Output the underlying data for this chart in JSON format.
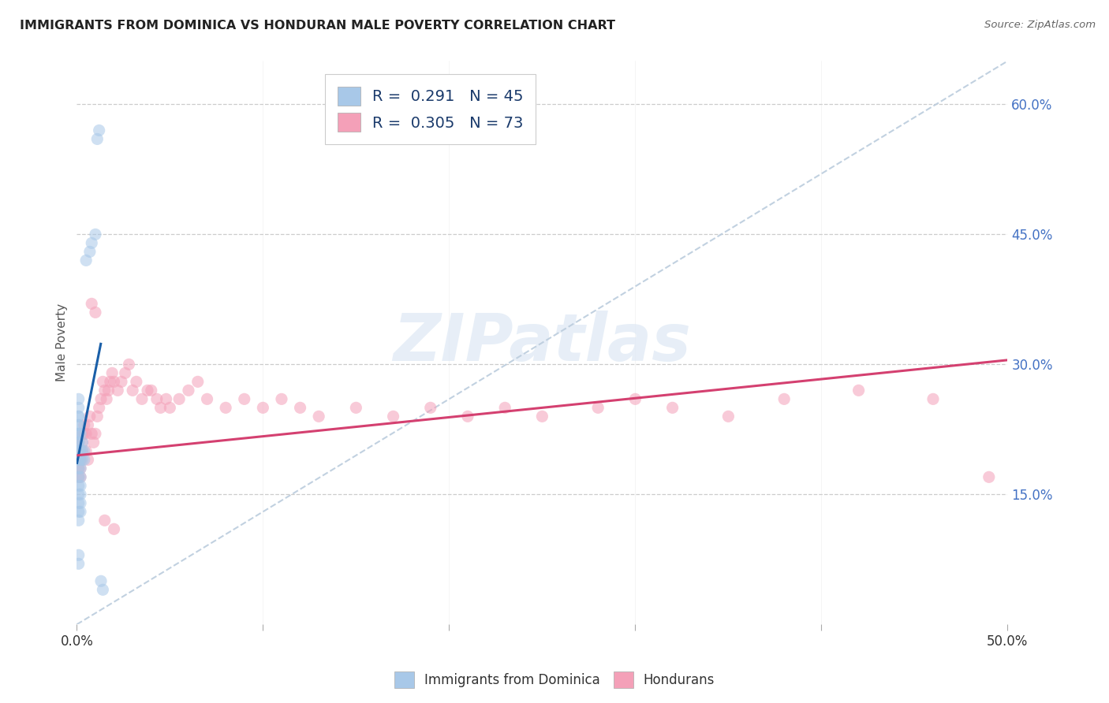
{
  "title": "IMMIGRANTS FROM DOMINICA VS HONDURAN MALE POVERTY CORRELATION CHART",
  "source": "Source: ZipAtlas.com",
  "ylabel": "Male Poverty",
  "ytick_values": [
    0.15,
    0.3,
    0.45,
    0.6
  ],
  "xlim": [
    0.0,
    0.5
  ],
  "ylim": [
    0.0,
    0.65
  ],
  "blue_color": "#a8c8e8",
  "pink_color": "#f4a0b8",
  "blue_line_color": "#1a5fa8",
  "pink_line_color": "#d44070",
  "diag_color": "#bbccdd",
  "dot_size": 120,
  "dot_alpha": 0.55,
  "series1_name": "Immigrants from Dominica",
  "series2_name": "Hondurans",
  "blue_trend_x0": 0.0,
  "blue_trend_x1": 0.013,
  "blue_trend_y0": 0.185,
  "blue_trend_y1": 0.325,
  "pink_trend_x0": 0.0,
  "pink_trend_x1": 0.5,
  "pink_trend_y0": 0.195,
  "pink_trend_y1": 0.305,
  "blue_x": [
    0.001,
    0.001,
    0.001,
    0.001,
    0.001,
    0.001,
    0.001,
    0.001,
    0.001,
    0.001,
    0.001,
    0.001,
    0.001,
    0.001,
    0.001,
    0.001,
    0.001,
    0.001,
    0.001,
    0.001,
    0.001,
    0.002,
    0.002,
    0.002,
    0.002,
    0.002,
    0.002,
    0.002,
    0.002,
    0.002,
    0.003,
    0.003,
    0.003,
    0.004,
    0.004,
    0.005,
    0.007,
    0.008,
    0.01,
    0.011,
    0.012,
    0.013,
    0.014,
    0.001,
    0.001
  ],
  "blue_y": [
    0.19,
    0.2,
    0.21,
    0.2,
    0.19,
    0.18,
    0.17,
    0.16,
    0.15,
    0.14,
    0.13,
    0.12,
    0.21,
    0.22,
    0.23,
    0.24,
    0.25,
    0.24,
    0.23,
    0.22,
    0.26,
    0.2,
    0.19,
    0.18,
    0.17,
    0.16,
    0.15,
    0.14,
    0.13,
    0.22,
    0.19,
    0.2,
    0.21,
    0.2,
    0.19,
    0.42,
    0.43,
    0.44,
    0.45,
    0.56,
    0.57,
    0.05,
    0.04,
    0.07,
    0.08
  ],
  "pink_x": [
    0.002,
    0.003,
    0.004,
    0.005,
    0.006,
    0.007,
    0.008,
    0.009,
    0.01,
    0.011,
    0.012,
    0.013,
    0.014,
    0.015,
    0.016,
    0.017,
    0.018,
    0.019,
    0.02,
    0.022,
    0.024,
    0.026,
    0.028,
    0.03,
    0.032,
    0.035,
    0.038,
    0.04,
    0.043,
    0.045,
    0.048,
    0.05,
    0.055,
    0.06,
    0.065,
    0.07,
    0.08,
    0.09,
    0.1,
    0.11,
    0.12,
    0.13,
    0.15,
    0.17,
    0.19,
    0.21,
    0.23,
    0.25,
    0.28,
    0.3,
    0.32,
    0.35,
    0.38,
    0.42,
    0.46,
    0.001,
    0.001,
    0.001,
    0.001,
    0.001,
    0.002,
    0.002,
    0.002,
    0.003,
    0.003,
    0.004,
    0.005,
    0.006,
    0.008,
    0.01,
    0.015,
    0.02,
    0.49
  ],
  "pink_y": [
    0.2,
    0.22,
    0.23,
    0.22,
    0.23,
    0.24,
    0.22,
    0.21,
    0.22,
    0.24,
    0.25,
    0.26,
    0.28,
    0.27,
    0.26,
    0.27,
    0.28,
    0.29,
    0.28,
    0.27,
    0.28,
    0.29,
    0.3,
    0.27,
    0.28,
    0.26,
    0.27,
    0.27,
    0.26,
    0.25,
    0.26,
    0.25,
    0.26,
    0.27,
    0.28,
    0.26,
    0.25,
    0.26,
    0.25,
    0.26,
    0.25,
    0.24,
    0.25,
    0.24,
    0.25,
    0.24,
    0.25,
    0.24,
    0.25,
    0.26,
    0.25,
    0.24,
    0.26,
    0.27,
    0.26,
    0.19,
    0.2,
    0.18,
    0.17,
    0.21,
    0.19,
    0.18,
    0.17,
    0.21,
    0.2,
    0.22,
    0.2,
    0.19,
    0.37,
    0.36,
    0.12,
    0.11,
    0.17
  ]
}
